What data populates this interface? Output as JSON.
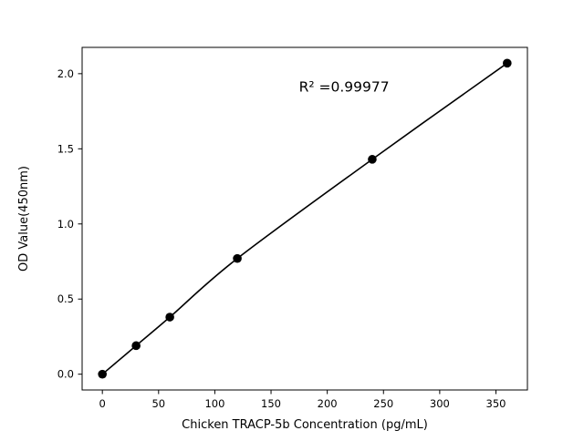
{
  "figure": {
    "background": "#ffffff"
  },
  "chart_data": {
    "type": "scatter",
    "title": "",
    "xlabel": "Chicken TRACP-5b Concentration (pg/mL)",
    "ylabel": "OD Value(450nm)",
    "x": [
      0,
      30,
      60,
      120,
      240,
      360
    ],
    "y": [
      0.0,
      0.19,
      0.38,
      0.77,
      1.43,
      2.07
    ],
    "fit_line": true,
    "annotation": {
      "text": "R² =0.99977",
      "x": 215,
      "y": 1.88
    },
    "xlim": [
      -18,
      378
    ],
    "ylim": [
      -0.105,
      2.175
    ],
    "xticks": [
      0,
      50,
      100,
      150,
      200,
      250,
      300,
      350
    ],
    "xtick_labels": [
      "0",
      "50",
      "100",
      "150",
      "200",
      "250",
      "300",
      "350"
    ],
    "yticks": [
      0.0,
      0.5,
      1.0,
      1.5,
      2.0
    ],
    "ytick_labels": [
      "0.0",
      "0.5",
      "1.0",
      "1.5",
      "2.0"
    ],
    "grid": false,
    "legend": null,
    "marker_color": "#000000",
    "line_color": "#000000",
    "frame_color": "#000000"
  }
}
